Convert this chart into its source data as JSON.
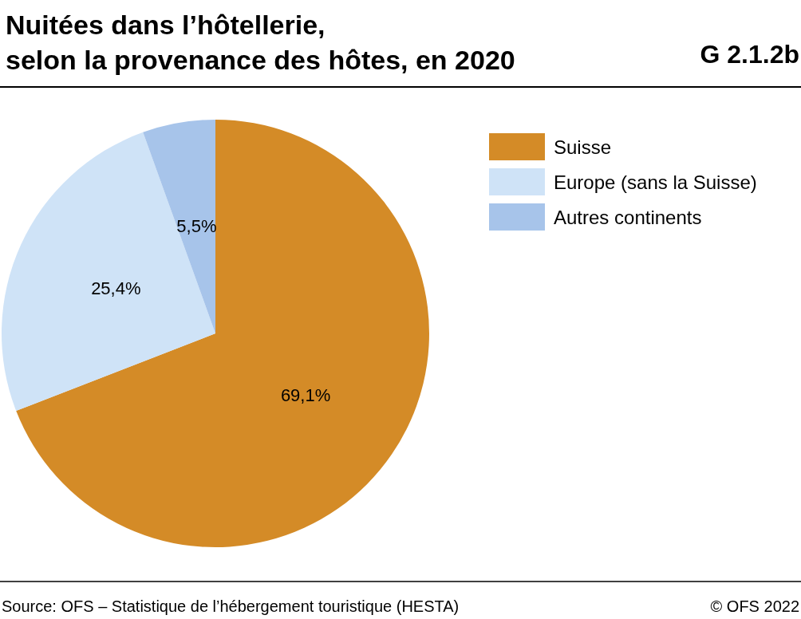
{
  "chart_data": {
    "type": "pie",
    "title": "Nuitées dans l’hôtellerie,\nselon la provenance des hôtes, en 2020",
    "annotations": [
      "G 2.1.2b",
      "Source: OFS – Statistique de l’hébergement touristique (HESTA)",
      "© OFS 2022"
    ],
    "categories": [
      "Suisse",
      "Europe (sans la Suisse)",
      "Autres continents"
    ],
    "values": [
      69.1,
      25.4,
      5.5
    ],
    "colors": [
      "#d48b27",
      "#cfe3f7",
      "#a7c4ea"
    ],
    "value_labels": [
      "69,1%",
      "25,4%",
      "5,5%"
    ],
    "legend": "top right"
  }
}
